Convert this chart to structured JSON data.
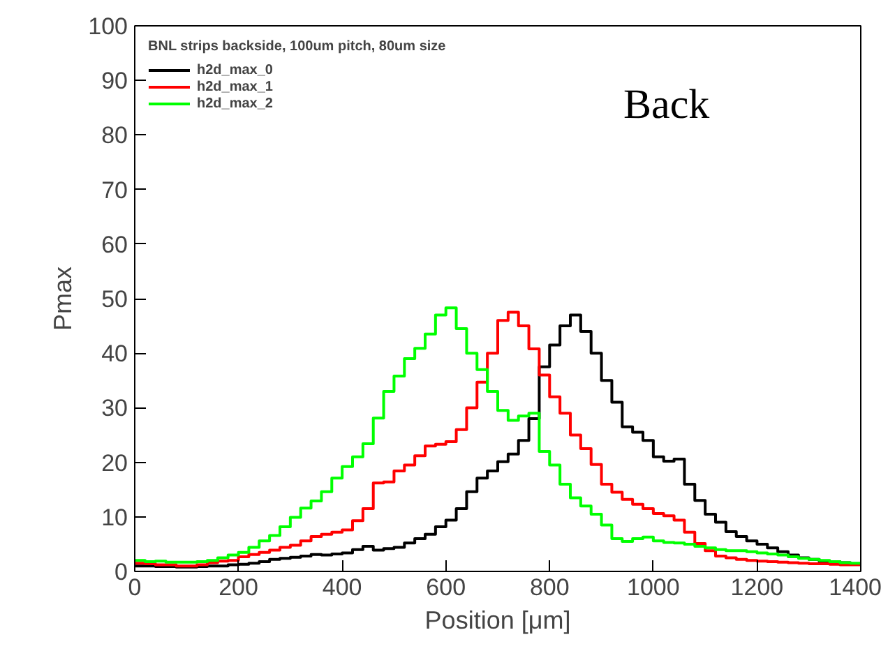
{
  "chart_data": {
    "type": "histogram",
    "xlabel": "Position [μm]",
    "ylabel": "Pmax",
    "legend_title": "BNL strips backside, 100um pitch, 80um size",
    "annotations": [
      "Back"
    ],
    "bins": [
      0,
      20,
      40,
      60,
      80,
      100,
      120,
      140,
      160,
      180,
      200,
      220,
      240,
      260,
      280,
      300,
      320,
      340,
      360,
      380,
      400,
      420,
      440,
      460,
      480,
      500,
      520,
      540,
      560,
      580,
      600,
      620,
      640,
      660,
      680,
      700,
      720,
      740,
      760,
      780,
      800,
      820,
      840,
      860,
      880,
      900,
      920,
      940,
      960,
      980,
      1000,
      1020,
      1040,
      1060,
      1080,
      1100,
      1120,
      1140,
      1160,
      1180,
      1200,
      1220,
      1240,
      1260,
      1280,
      1300,
      1320,
      1340,
      1360,
      1380,
      1400
    ],
    "series": [
      {
        "name": "h2d_max_0",
        "color": "#000000",
        "values": [
          1,
          1,
          0.9,
          0.9,
          0.8,
          0.8,
          0.9,
          1,
          1,
          1.2,
          1.3,
          1.5,
          1.8,
          2.2,
          2.4,
          2.6,
          2.8,
          3.1,
          3,
          3.2,
          3.4,
          4,
          4.6,
          3.9,
          4.2,
          4.4,
          5.2,
          6,
          6.8,
          8.2,
          9.4,
          11.5,
          14.6,
          17.1,
          18.4,
          20.1,
          21.5,
          24,
          28,
          37.5,
          41.5,
          45,
          47,
          44,
          40,
          35,
          31,
          26.5,
          25.5,
          24,
          21,
          20.2,
          20.6,
          16,
          13,
          10.5,
          9,
          7.3,
          6.4,
          5.6,
          5,
          4.3,
          3.6,
          3,
          2.5,
          2.2,
          1.8,
          1.8,
          1.6,
          1.4
        ]
      },
      {
        "name": "h2d_max_1",
        "color": "#ff0000",
        "values": [
          1.5,
          1.4,
          1.2,
          1.2,
          1,
          1,
          1.2,
          1.6,
          1.9,
          2,
          2.7,
          3.1,
          3.5,
          3.9,
          4.4,
          4.8,
          5.6,
          6.4,
          6.8,
          7.2,
          7.6,
          9.3,
          11.5,
          16.2,
          16.4,
          18.4,
          19.5,
          21.2,
          23,
          23.3,
          23.8,
          26,
          30,
          34.7,
          40,
          46,
          47.5,
          45,
          40.8,
          36,
          32,
          29,
          25,
          22.5,
          19.6,
          16,
          14.5,
          13.2,
          12.3,
          11.5,
          10.6,
          10.2,
          9.4,
          7.2,
          5.1,
          3.8,
          2.8,
          2.5,
          2.2,
          2,
          1.9,
          1.8,
          1.7,
          1.6,
          1.5,
          1.4,
          1.4,
          1.3,
          1.2,
          1.2
        ]
      },
      {
        "name": "h2d_max_2",
        "color": "#00ff00",
        "values": [
          2,
          1.8,
          1.9,
          1.7,
          1.7,
          1.7,
          1.8,
          2,
          2.5,
          3,
          3.5,
          4.4,
          5.6,
          6.6,
          8.2,
          9.9,
          11.6,
          12.9,
          14.6,
          17.1,
          19.2,
          21,
          23.4,
          28.1,
          33,
          35.8,
          39,
          40.9,
          43.5,
          47,
          48.3,
          44.5,
          40,
          37,
          33,
          29.5,
          27.7,
          28.5,
          29,
          22,
          19.5,
          16,
          13.5,
          12,
          10.5,
          8.5,
          6,
          5.5,
          6,
          6.3,
          5.6,
          5.3,
          5.2,
          5,
          4.6,
          4.3,
          4,
          3.8,
          3.8,
          3.6,
          3.4,
          3.2,
          3,
          2.7,
          2.4,
          2.2,
          2,
          1.8,
          1.6,
          1.5
        ]
      }
    ],
    "xlim": [
      0,
      1400
    ],
    "ylim": [
      0,
      100
    ],
    "xticks": [
      0,
      200,
      400,
      600,
      800,
      1000,
      1200,
      1400
    ],
    "yticks": [
      0,
      10,
      20,
      30,
      40,
      50,
      60,
      70,
      80,
      90,
      100
    ],
    "grid": false,
    "legend": "top left",
    "line_style": "solid"
  }
}
